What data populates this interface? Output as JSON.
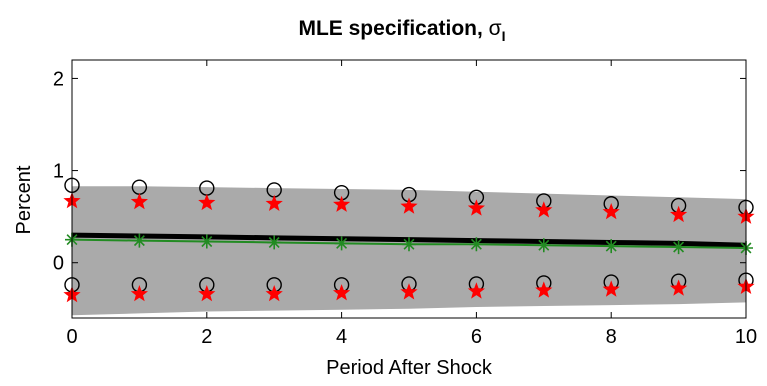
{
  "chart_data": {
    "type": "line",
    "title": {
      "main": "MLE specification, ",
      "symbol": "σ",
      "subscript": "I"
    },
    "xlabel": "Period After Shock",
    "ylabel": "Percent",
    "xlim": [
      0,
      10
    ],
    "ylim": [
      -0.6,
      2.2
    ],
    "xticks": [
      "0",
      "2",
      "4",
      "6",
      "8",
      "10"
    ],
    "xtick_values": [
      0,
      2,
      4,
      6,
      8,
      10
    ],
    "yticks": [
      "0",
      "1",
      "2"
    ],
    "ytick_values": [
      0,
      1,
      2
    ],
    "grid": false,
    "legend": "none",
    "x": [
      0,
      1,
      2,
      3,
      4,
      5,
      6,
      7,
      8,
      9,
      10
    ],
    "band": {
      "color": "#aaaaaa",
      "lower": [
        -0.57,
        -0.55,
        -0.53,
        -0.52,
        -0.51,
        -0.5,
        -0.48,
        -0.47,
        -0.46,
        -0.45,
        -0.43
      ],
      "upper": [
        0.83,
        0.83,
        0.82,
        0.81,
        0.8,
        0.79,
        0.77,
        0.75,
        0.73,
        0.71,
        0.69
      ]
    },
    "series": [
      {
        "style": "line",
        "color": "#000000",
        "values": [
          0.3,
          0.29,
          0.28,
          0.27,
          0.26,
          0.25,
          0.24,
          0.23,
          0.22,
          0.21,
          0.19
        ]
      },
      {
        "style": "line-star",
        "color": "#228b22",
        "values": [
          0.25,
          0.24,
          0.23,
          0.22,
          0.21,
          0.2,
          0.2,
          0.19,
          0.18,
          0.17,
          0.16
        ]
      },
      {
        "style": "open-circle",
        "color": "#000000",
        "values": [
          0.84,
          0.82,
          0.81,
          0.79,
          0.76,
          0.74,
          0.71,
          0.67,
          0.64,
          0.62,
          0.6
        ]
      },
      {
        "style": "open-circle",
        "color": "#000000",
        "values": [
          -0.24,
          -0.24,
          -0.24,
          -0.24,
          -0.24,
          -0.23,
          -0.23,
          -0.22,
          -0.21,
          -0.2,
          -0.19
        ]
      },
      {
        "style": "filled-star",
        "color": "#ff0000",
        "values": [
          0.67,
          0.66,
          0.65,
          0.64,
          0.63,
          0.61,
          0.59,
          0.57,
          0.55,
          0.52,
          0.5
        ]
      },
      {
        "style": "filled-star",
        "color": "#ff0000",
        "values": [
          -0.35,
          -0.34,
          -0.34,
          -0.34,
          -0.33,
          -0.32,
          -0.31,
          -0.3,
          -0.29,
          -0.28,
          -0.26
        ]
      }
    ]
  }
}
